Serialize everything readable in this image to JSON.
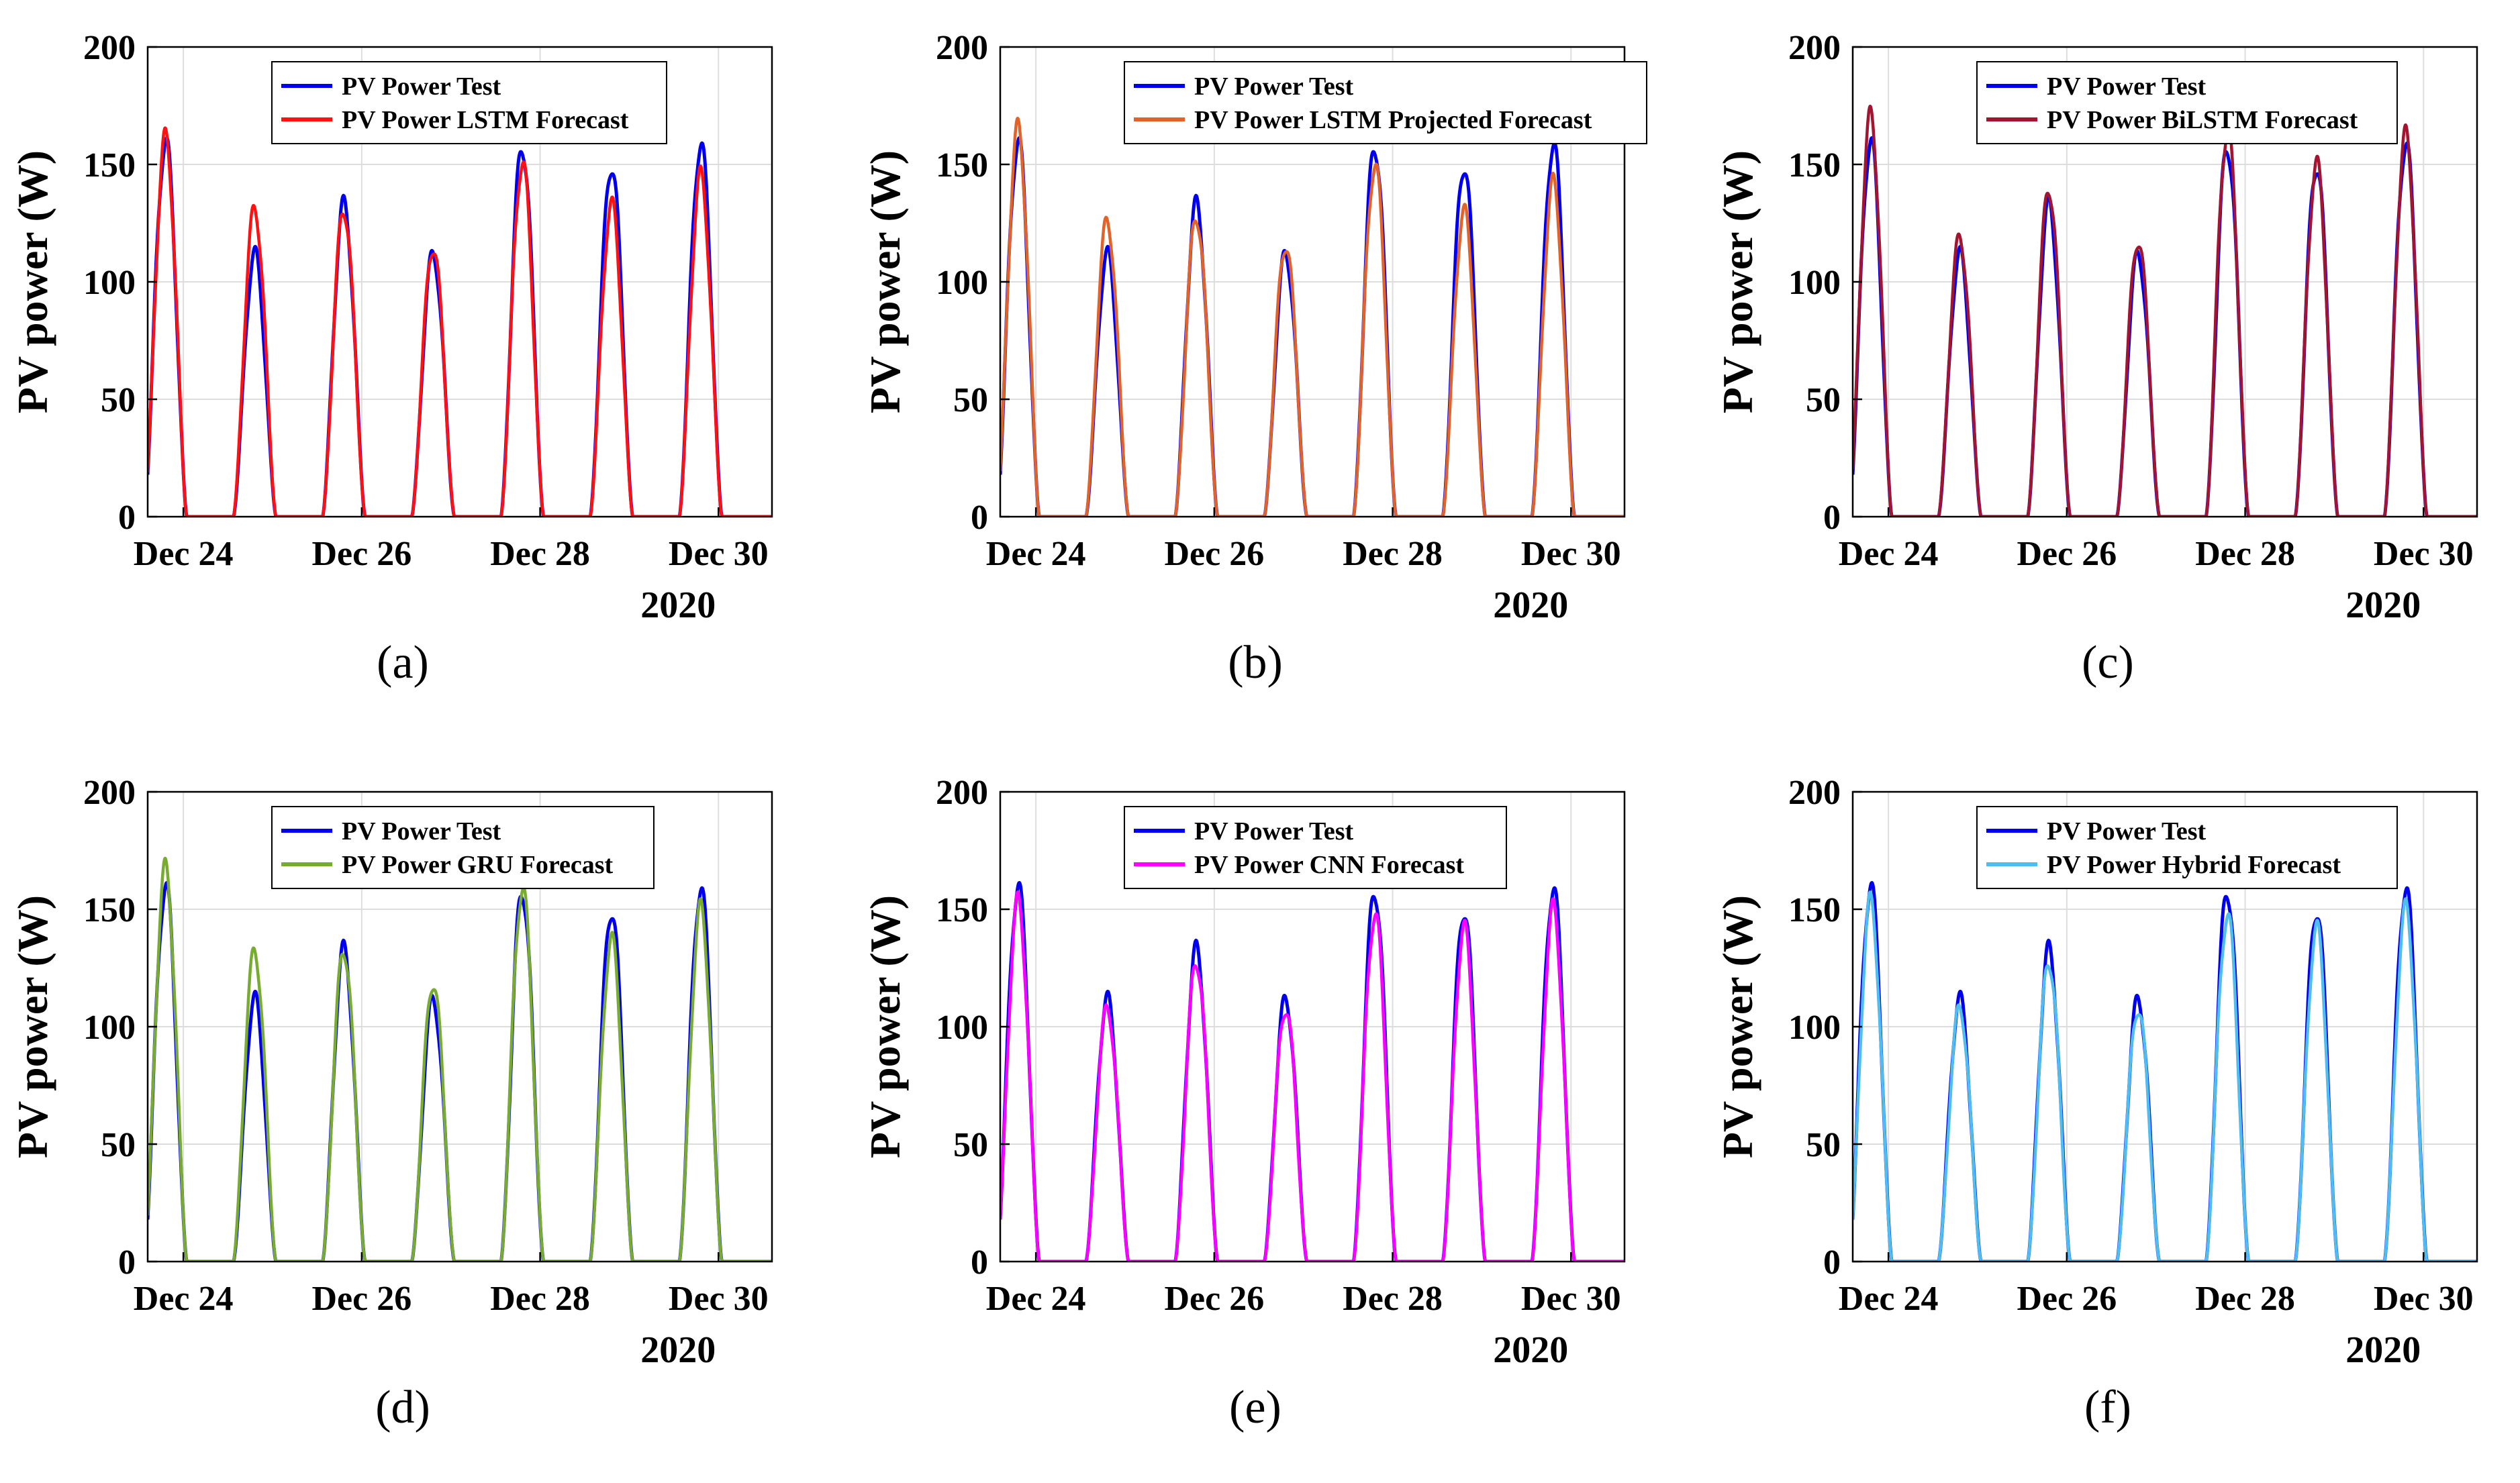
{
  "chart_data": [
    {
      "type": "line",
      "panel_label": "(a)",
      "ylabel": "PV power (W)",
      "ylim": [
        0,
        200
      ],
      "yticks": [
        0,
        50,
        100,
        150,
        200
      ],
      "xlim": [
        23.6,
        30.6
      ],
      "xticks": [
        24,
        26,
        28,
        30
      ],
      "xticklabels": [
        "Dec 24",
        "Dec 26",
        "Dec 28",
        "Dec 30"
      ],
      "xyear": "2020",
      "grid": true,
      "legend_position": "top-center",
      "days": [
        23.8,
        24.8,
        25.8,
        26.8,
        27.8,
        28.8,
        29.8
      ],
      "series": [
        {
          "name": "PV Power Test",
          "color": "#0000ee",
          "daily_peaks": [
            160,
            112,
            133,
            112,
            158,
            150,
            159
          ]
        },
        {
          "name": "PV Power LSTM Forecast",
          "color": "#ff1111",
          "daily_peaks": [
            161,
            131,
            131,
            115,
            151,
            133,
            145
          ]
        }
      ]
    },
    {
      "type": "line",
      "panel_label": "(b)",
      "ylabel": "PV power (W)",
      "ylim": [
        0,
        200
      ],
      "yticks": [
        0,
        50,
        100,
        150,
        200
      ],
      "xlim": [
        23.6,
        30.6
      ],
      "xticks": [
        24,
        26,
        28,
        30
      ],
      "xticklabels": [
        "Dec 24",
        "Dec 26",
        "Dec 28",
        "Dec 30"
      ],
      "xyear": "2020",
      "grid": true,
      "legend_position": "top-center",
      "days": [
        23.8,
        24.8,
        25.8,
        26.8,
        27.8,
        28.8,
        29.8
      ],
      "series": [
        {
          "name": "PV Power Test",
          "color": "#0000ee",
          "daily_peaks": [
            160,
            112,
            133,
            112,
            158,
            150,
            159
          ]
        },
        {
          "name": "PV Power LSTM Projected Forecast",
          "color": "#e2632a",
          "daily_peaks": [
            165,
            126,
            128,
            116,
            150,
            130,
            142
          ]
        }
      ]
    },
    {
      "type": "line",
      "panel_label": "(c)",
      "ylabel": "PV power (W)",
      "ylim": [
        0,
        200
      ],
      "yticks": [
        0,
        50,
        100,
        150,
        200
      ],
      "xlim": [
        23.6,
        30.6
      ],
      "xticks": [
        24,
        26,
        28,
        30
      ],
      "xticklabels": [
        "Dec 24",
        "Dec 26",
        "Dec 28",
        "Dec 30"
      ],
      "xyear": "2020",
      "grid": true,
      "legend_position": "top-center",
      "days": [
        23.8,
        24.8,
        25.8,
        26.8,
        27.8,
        28.8,
        29.8
      ],
      "series": [
        {
          "name": "PV Power Test",
          "color": "#0000ee",
          "daily_peaks": [
            160,
            112,
            133,
            112,
            158,
            150,
            159
          ]
        },
        {
          "name": "PV Power BiLSTM Forecast",
          "color": "#a2142f",
          "daily_peaks": [
            170,
            119,
            140,
            118,
            165,
            150,
            162
          ]
        }
      ]
    },
    {
      "type": "line",
      "panel_label": "(d)",
      "ylabel": "PV power (W)",
      "ylim": [
        0,
        200
      ],
      "yticks": [
        0,
        50,
        100,
        150,
        200
      ],
      "xlim": [
        23.6,
        30.6
      ],
      "xticks": [
        24,
        26,
        28,
        30
      ],
      "xticklabels": [
        "Dec 24",
        "Dec 26",
        "Dec 28",
        "Dec 30"
      ],
      "xyear": "2020",
      "grid": true,
      "legend_position": "top-center",
      "days": [
        23.8,
        24.8,
        25.8,
        26.8,
        27.8,
        28.8,
        29.8
      ],
      "series": [
        {
          "name": "PV Power Test",
          "color": "#0000ee",
          "daily_peaks": [
            160,
            112,
            133,
            112,
            158,
            150,
            159
          ]
        },
        {
          "name": "PV Power GRU Forecast",
          "color": "#77ac30",
          "daily_peaks": [
            167,
            132,
            133,
            119,
            159,
            137,
            150
          ]
        }
      ]
    },
    {
      "type": "line",
      "panel_label": "(e)",
      "ylabel": "PV power (W)",
      "ylim": [
        0,
        200
      ],
      "yticks": [
        0,
        50,
        100,
        150,
        200
      ],
      "xlim": [
        23.6,
        30.6
      ],
      "xticks": [
        24,
        26,
        28,
        30
      ],
      "xticklabels": [
        "Dec 24",
        "Dec 26",
        "Dec 28",
        "Dec 30"
      ],
      "xyear": "2020",
      "grid": true,
      "legend_position": "top-center",
      "days": [
        23.8,
        24.8,
        25.8,
        26.8,
        27.8,
        28.8,
        29.8
      ],
      "series": [
        {
          "name": "PV Power Test",
          "color": "#0000ee",
          "daily_peaks": [
            160,
            112,
            133,
            112,
            158,
            150,
            159
          ]
        },
        {
          "name": "PV Power CNN Forecast",
          "color": "#ff00ff",
          "daily_peaks": [
            153,
            108,
            128,
            108,
            148,
            142,
            150
          ]
        }
      ]
    },
    {
      "type": "line",
      "panel_label": "(f)",
      "ylabel": "PV power (W)",
      "ylim": [
        0,
        200
      ],
      "yticks": [
        0,
        50,
        100,
        150,
        200
      ],
      "xlim": [
        23.6,
        30.6
      ],
      "xticks": [
        24,
        26,
        28,
        30
      ],
      "xticklabels": [
        "Dec 24",
        "Dec 26",
        "Dec 28",
        "Dec 30"
      ],
      "xyear": "2020",
      "grid": true,
      "legend_position": "top-center",
      "days": [
        23.8,
        24.8,
        25.8,
        26.8,
        27.8,
        28.8,
        29.8
      ],
      "series": [
        {
          "name": "PV Power Test",
          "color": "#0000ee",
          "daily_peaks": [
            160,
            112,
            133,
            112,
            158,
            150,
            159
          ]
        },
        {
          "name": "PV Power Hybrid Forecast",
          "color": "#4dbeee",
          "daily_peaks": [
            153,
            108,
            128,
            108,
            148,
            142,
            150
          ]
        }
      ]
    }
  ]
}
